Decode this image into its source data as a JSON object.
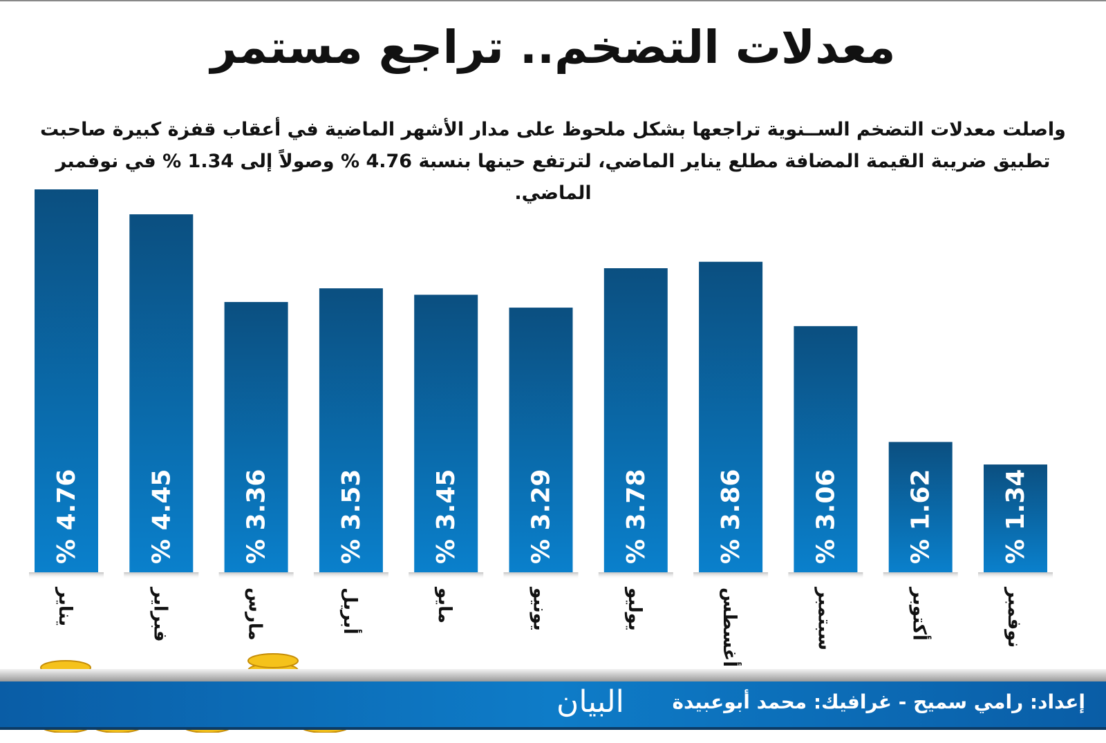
{
  "title": "معدلات التضخم.. تراجع مستمر",
  "subtitle": "واصلت معدلات التضخم الســنوية تراجعها بشكل ملحوظ على مدار الأشهر الماضية في أعقاب قفزة كبيرة صاحبت تطبيق ضريبة القيمة المضافة مطلع يناير الماضي، لترتفع حينها بنسبة 4.76 % وصولاً إلى 1.34 % في نوفمبر الماضي.",
  "footer": {
    "credit": "إعداد: رامي سميح - غرافيك: محمد أبوعبيدة",
    "logo": "البيان"
  },
  "colors": {
    "bar_top": "#0b4f80",
    "bar_bottom": "#0a7fcb",
    "footer": "#0e7cc8"
  },
  "chart_data": {
    "type": "bar",
    "categories": [
      "يناير",
      "فبراير",
      "مارس",
      "أبريل",
      "مايو",
      "يونيو",
      "يوليو",
      "أغسطس",
      "سبتمبر",
      "أكتوبر",
      "نوفمبر"
    ],
    "values": [
      4.76,
      4.45,
      3.36,
      3.53,
      3.45,
      3.29,
      3.78,
      3.86,
      3.06,
      1.62,
      1.34
    ],
    "data_labels": [
      "% 4.76",
      "% 4.45",
      "% 3.36",
      "% 3.53",
      "% 3.45",
      "% 3.29",
      "% 3.78",
      "% 3.86",
      "% 3.06",
      "% 1.62",
      "% 1.34"
    ],
    "ylim": [
      0,
      4.76
    ],
    "grid": false,
    "unit": "%"
  }
}
